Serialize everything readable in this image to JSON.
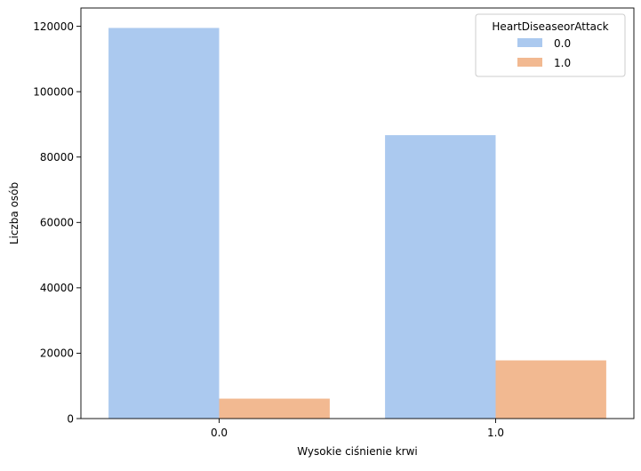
{
  "chart_data": {
    "type": "bar",
    "title": "",
    "xlabel": "Wysokie ciśnienie krwi",
    "ylabel": "Liczba osób",
    "categories": [
      "0.0",
      "1.0"
    ],
    "series": [
      {
        "name": "0.0",
        "values": [
          119500,
          86700
        ],
        "color": "#abc9ef"
      },
      {
        "name": "1.0",
        "values": [
          6100,
          17800
        ],
        "color": "#f2b991"
      }
    ],
    "ylim": [
      0,
      125600
    ],
    "yticks": [
      0,
      20000,
      40000,
      60000,
      80000,
      100000,
      120000
    ],
    "ytick_labels": [
      "0",
      "20000",
      "40000",
      "60000",
      "80000",
      "100000",
      "120000"
    ],
    "grid": false,
    "legend": {
      "title": "HeartDiseaseorAttack",
      "placement": "top-right"
    }
  }
}
